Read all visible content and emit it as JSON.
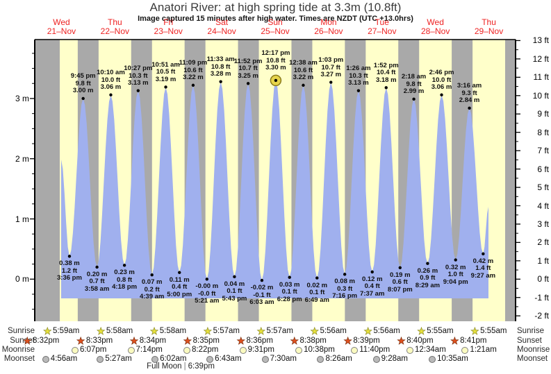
{
  "header": {
    "title": "Anatori River: at high  spring tide at 3.3m (10.8ft)",
    "subtitle": "Image captured 15 minutes after high water. Times are NZDT (UTC +13.0hrs)"
  },
  "chart_data": {
    "type": "area",
    "title": "Anatori River: at high  spring tide at 3.3m (10.8ft)",
    "xlabel": "",
    "ylabel_left": "m",
    "ylabel_right": "ft",
    "ylim_left_m": [
      -0.7,
      4.0
    ],
    "ylim_right_ft": [
      -2.3,
      13.1
    ],
    "days": [
      {
        "name": "Wed",
        "date": "21–Nov"
      },
      {
        "name": "Thu",
        "date": "22–Nov"
      },
      {
        "name": "Fri",
        "date": "23–Nov"
      },
      {
        "name": "Sat",
        "date": "24–Nov"
      },
      {
        "name": "Sun",
        "date": "25–Nov"
      },
      {
        "name": "Mon",
        "date": "26–Nov"
      },
      {
        "name": "Tue",
        "date": "27–Nov"
      },
      {
        "name": "Wed",
        "date": "28–Nov"
      },
      {
        "name": "Thu",
        "date": "29–Nov"
      }
    ],
    "y_left_labels": [
      {
        "value": 3,
        "label": "3 m"
      },
      {
        "value": 2,
        "label": "2 m"
      },
      {
        "value": 1,
        "label": "1 m"
      },
      {
        "value": 0,
        "label": "0 m"
      }
    ],
    "y_right_labels": [
      {
        "value": 13,
        "label": "13 ft"
      },
      {
        "value": 12,
        "label": "12 ft"
      },
      {
        "value": 11,
        "label": "11 ft"
      },
      {
        "value": 10,
        "label": "10 ft"
      },
      {
        "value": 9,
        "label": "9 ft"
      },
      {
        "value": 8,
        "label": "8 ft"
      },
      {
        "value": 7,
        "label": "7 ft"
      },
      {
        "value": 6,
        "label": "6 ft"
      },
      {
        "value": 5,
        "label": "5 ft"
      },
      {
        "value": 4,
        "label": "4 ft"
      },
      {
        "value": 3,
        "label": "3 ft"
      },
      {
        "value": 2,
        "label": "2 ft"
      },
      {
        "value": 1,
        "label": "1 ft"
      },
      {
        "value": 0,
        "label": "0 ft"
      },
      {
        "value": -1,
        "label": "-1 ft"
      },
      {
        "value": -2,
        "label": "-2 ft"
      }
    ],
    "extremes": [
      {
        "type": "low",
        "day": 0,
        "time": "3:36 pm",
        "m": "0.38",
        "ft": "1.2"
      },
      {
        "type": "high",
        "day": 0,
        "time": "9:45 pm",
        "m": "3.00",
        "ft": "9.8"
      },
      {
        "type": "low",
        "day": 1,
        "time": "3:58 am",
        "m": "0.20",
        "ft": "0.7"
      },
      {
        "type": "high",
        "day": 1,
        "time": "10:10 am",
        "m": "3.06",
        "ft": "10.0"
      },
      {
        "type": "low",
        "day": 1,
        "time": "4:18 pm",
        "m": "0.23",
        "ft": "0.8"
      },
      {
        "type": "high",
        "day": 1,
        "time": "10:27 pm",
        "m": "3.13",
        "ft": "10.3"
      },
      {
        "type": "low",
        "day": 2,
        "time": "4:39 am",
        "m": "0.07",
        "ft": "0.2"
      },
      {
        "type": "high",
        "day": 2,
        "time": "10:51 am",
        "m": "3.19",
        "ft": "10.5"
      },
      {
        "type": "low",
        "day": 2,
        "time": "5:00 pm",
        "m": "0.11",
        "ft": "0.4"
      },
      {
        "type": "high",
        "day": 2,
        "time": "11:09 pm",
        "m": "3.22",
        "ft": "10.6"
      },
      {
        "type": "low",
        "day": 3,
        "time": "5:21 am",
        "m": "-0.00",
        "ft": "-0.0"
      },
      {
        "type": "high",
        "day": 3,
        "time": "11:33 am",
        "m": "3.28",
        "ft": "10.8"
      },
      {
        "type": "low",
        "day": 3,
        "time": "5:43 pm",
        "m": "0.04",
        "ft": "0.1"
      },
      {
        "type": "high",
        "day": 3,
        "time": "11:52 pm",
        "m": "3.25",
        "ft": "10.7"
      },
      {
        "type": "low",
        "day": 4,
        "time": "6:03 am",
        "m": "-0.02",
        "ft": "-0.1"
      },
      {
        "type": "high",
        "day": 4,
        "time": "12:17 pm",
        "m": "3.30",
        "ft": "10.8",
        "highlight": true
      },
      {
        "type": "low",
        "day": 4,
        "time": "6:28 pm",
        "m": "0.03",
        "ft": "0.1"
      },
      {
        "type": "high",
        "day": 5,
        "time": "12:38 am",
        "m": "3.22",
        "ft": "10.6"
      },
      {
        "type": "low",
        "day": 5,
        "time": "6:49 am",
        "m": "0.02",
        "ft": "0.1"
      },
      {
        "type": "high",
        "day": 5,
        "time": "1:03 pm",
        "m": "3.27",
        "ft": "10.7"
      },
      {
        "type": "low",
        "day": 5,
        "time": "7:16 pm",
        "m": "0.08",
        "ft": "0.3"
      },
      {
        "type": "high",
        "day": 6,
        "time": "1:26 am",
        "m": "3.13",
        "ft": "10.3"
      },
      {
        "type": "low",
        "day": 6,
        "time": "7:37 am",
        "m": "0.12",
        "ft": "0.4"
      },
      {
        "type": "high",
        "day": 6,
        "time": "1:52 pm",
        "m": "3.18",
        "ft": "10.4"
      },
      {
        "type": "low",
        "day": 6,
        "time": "8:07 pm",
        "m": "0.19",
        "ft": "0.6"
      },
      {
        "type": "high",
        "day": 7,
        "time": "2:18 am",
        "m": "2.99",
        "ft": "9.8"
      },
      {
        "type": "low",
        "day": 7,
        "time": "8:29 am",
        "m": "0.26",
        "ft": "0.9"
      },
      {
        "type": "high",
        "day": 7,
        "time": "2:46 pm",
        "m": "3.06",
        "ft": "10.0"
      },
      {
        "type": "low",
        "day": 7,
        "time": "9:04 pm",
        "m": "0.32",
        "ft": "1.0"
      },
      {
        "type": "high",
        "day": 8,
        "time": "3:16 am",
        "m": "2.84",
        "ft": "9.3"
      },
      {
        "type": "low",
        "day": 8,
        "time": "9:27 am",
        "m": "0.42",
        "ft": "1.4"
      }
    ]
  },
  "astronomy": {
    "rows": [
      {
        "id": "sunrise",
        "label": "Sunrise",
        "icon": "sunrise-star-icon",
        "events": [
          {
            "day": 0,
            "time": "5:59am"
          },
          {
            "day": 1,
            "time": "5:58am"
          },
          {
            "day": 2,
            "time": "5:58am"
          },
          {
            "day": 3,
            "time": "5:57am"
          },
          {
            "day": 4,
            "time": "5:57am"
          },
          {
            "day": 5,
            "time": "5:56am"
          },
          {
            "day": 6,
            "time": "5:56am"
          },
          {
            "day": 7,
            "time": "5:55am"
          },
          {
            "day": 8,
            "time": "5:55am"
          }
        ]
      },
      {
        "id": "sunset",
        "label": "Sunset",
        "icon": "sunset-star-icon",
        "events": [
          {
            "day": 0,
            "time": "8:32pm"
          },
          {
            "day": 1,
            "time": "8:33pm"
          },
          {
            "day": 2,
            "time": "8:34pm"
          },
          {
            "day": 3,
            "time": "8:35pm"
          },
          {
            "day": 4,
            "time": "8:36pm"
          },
          {
            "day": 5,
            "time": "8:38pm"
          },
          {
            "day": 6,
            "time": "8:39pm"
          },
          {
            "day": 7,
            "time": "8:40pm"
          },
          {
            "day": 8,
            "time": "8:41pm"
          }
        ]
      },
      {
        "id": "moonrise",
        "label": "Moonrise",
        "icon": "moonrise-moon-icon",
        "events": [
          {
            "day": 0,
            "time": "6:07pm"
          },
          {
            "day": 1,
            "time": "7:14pm"
          },
          {
            "day": 2,
            "time": "8:22pm"
          },
          {
            "day": 3,
            "time": "9:31pm"
          },
          {
            "day": 4,
            "time": "10:38pm"
          },
          {
            "day": 5,
            "time": "11:40pm"
          },
          {
            "day": 7,
            "time": "12:34am"
          },
          {
            "day": 8,
            "time": "1:21am"
          }
        ]
      },
      {
        "id": "moonset",
        "label": "Moonset",
        "icon": "moonset-moon-icon",
        "events": [
          {
            "day": 0,
            "time": "4:56am"
          },
          {
            "day": 1,
            "time": "5:27am"
          },
          {
            "day": 2,
            "time": "6:02am"
          },
          {
            "day": 3,
            "time": "6:43am"
          },
          {
            "day": 4,
            "time": "7:30am"
          },
          {
            "day": 5,
            "time": "8:26am"
          },
          {
            "day": 6,
            "time": "9:28am"
          },
          {
            "day": 7,
            "time": "10:35am"
          }
        ]
      }
    ],
    "full_moon": {
      "label": "Full Moon",
      "separator": "|",
      "time": "6:39pm"
    }
  },
  "colors": {
    "background": "#ffffff",
    "day_band": "#ffffca",
    "night_band": "#a9a9a9",
    "tide_fill": "#a0b0ee",
    "day_label": "#ee2222",
    "axis": "#000000",
    "highlight_fill": "#e6d44a",
    "highlight_stroke": "#8a7a1a"
  }
}
